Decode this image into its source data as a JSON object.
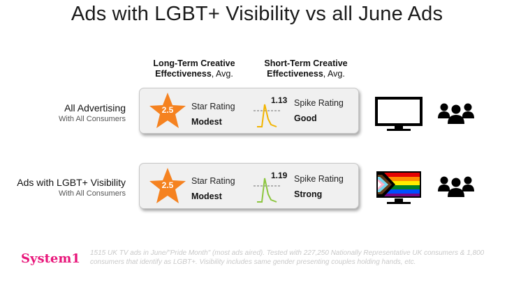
{
  "title": "Ads with LGBT+ Visibility vs all June Ads",
  "columns": {
    "long_term": {
      "line1": "Long-Term Creative",
      "line2_bold": "Effectiveness",
      "line2_rest": ", Avg."
    },
    "short_term": {
      "line1": "Short-Term Creative",
      "line2_bold": "Effectiveness",
      "line2_rest": ", Avg."
    }
  },
  "rows": [
    {
      "label": "All Advertising",
      "sublabel": "With All Consumers",
      "star_value": "2.5",
      "star_title": "Star Rating",
      "star_verdict": "Modest",
      "spike_value": "1.13",
      "spike_title": "Spike Rating",
      "spike_verdict": "Good",
      "spike_color": "#f2b400",
      "screen": "tv-icon",
      "audience": "group-icon"
    },
    {
      "label": "Ads with LGBT+ Visibility",
      "sublabel": "With All Consumers",
      "star_value": "2.5",
      "star_title": "Star Rating",
      "star_verdict": "Modest",
      "spike_value": "1.19",
      "spike_title": "Spike Rating",
      "spike_verdict": "Strong",
      "spike_color": "#8cc63f",
      "screen": "progress-pride-tv-icon",
      "audience": "group-icon"
    }
  ],
  "colors": {
    "star": "#f58220",
    "brand": "#e8167a",
    "panel": "#f0f0f0"
  },
  "footer": {
    "logo": "System1",
    "note": "1515 UK TV ads in June/\"Pride Month\" (most ads aired). Tested with 227,250 Nationally Representative UK consumers & 1,800 consumers that identify as LGBT+. Visibility includes same gender presenting couples holding hands, etc."
  }
}
